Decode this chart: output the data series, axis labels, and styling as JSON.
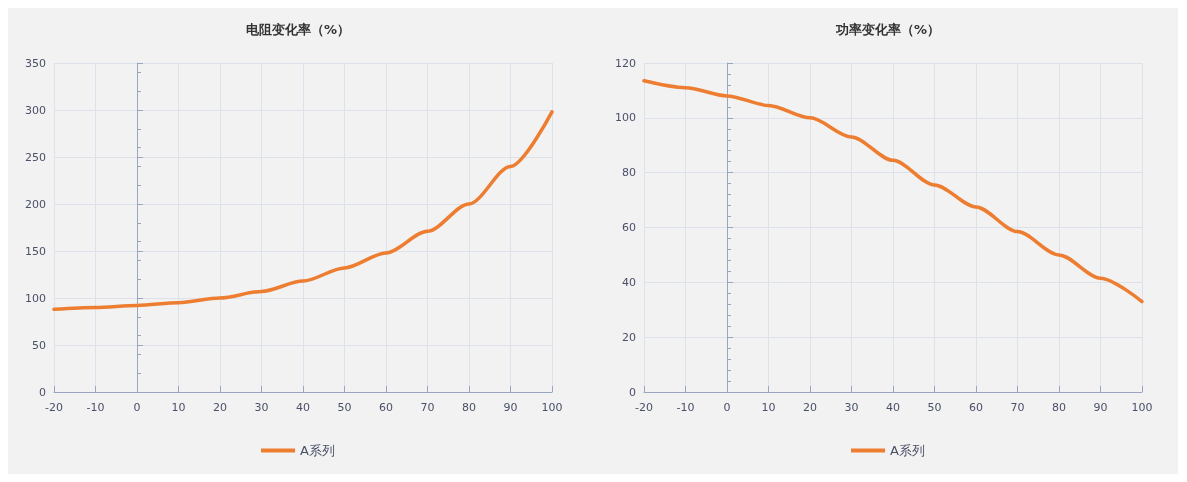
{
  "chart_data": [
    {
      "type": "line",
      "title": "电阻变化率（%）",
      "x": [
        -20,
        -10,
        0,
        10,
        20,
        30,
        40,
        50,
        60,
        70,
        80,
        90,
        100
      ],
      "xlim": [
        -20,
        100
      ],
      "xticks": [
        -20,
        -10,
        0,
        10,
        20,
        30,
        40,
        50,
        60,
        70,
        80,
        90,
        100
      ],
      "ylim": [
        0,
        350
      ],
      "yticks": [
        0,
        50,
        100,
        150,
        200,
        250,
        300,
        350
      ],
      "grid": true,
      "legend": "bottom",
      "series": [
        {
          "name": "A系列",
          "color": "#ed7d31",
          "values": [
            88,
            90,
            92,
            95,
            100,
            107,
            118,
            132,
            148,
            171,
            200,
            240,
            298
          ]
        }
      ]
    },
    {
      "type": "line",
      "title": "功率变化率（%）",
      "x": [
        -20,
        -10,
        0,
        10,
        20,
        30,
        40,
        50,
        60,
        70,
        80,
        90,
        100
      ],
      "xlim": [
        -20,
        100
      ],
      "xticks": [
        -20,
        -10,
        0,
        10,
        20,
        30,
        40,
        50,
        60,
        70,
        80,
        90,
        100
      ],
      "ylim": [
        0,
        120
      ],
      "yticks": [
        0,
        20,
        40,
        60,
        80,
        100,
        120
      ],
      "grid": true,
      "legend": "bottom",
      "series": [
        {
          "name": "A系列",
          "color": "#ed7d31",
          "values": [
            113.5,
            111,
            108,
            104.5,
            100,
            93,
            84.5,
            75.5,
            67.5,
            58.5,
            50,
            41.5,
            33
          ]
        }
      ]
    }
  ]
}
